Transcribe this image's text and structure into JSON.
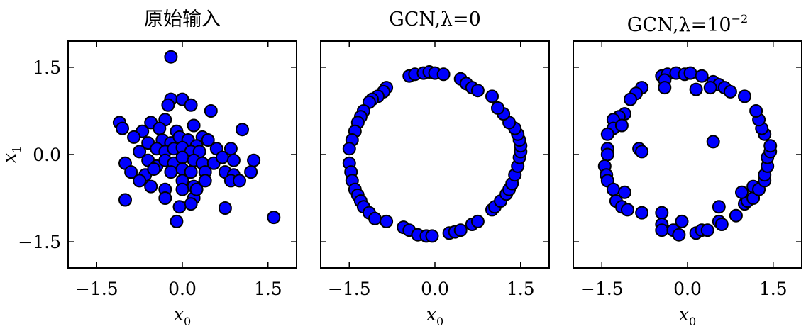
{
  "chart_data": [
    {
      "type": "scatter",
      "title": "原始输入",
      "xlabel": "x0",
      "ylabel": "x1",
      "xlim": [
        -2.0,
        2.0
      ],
      "ylim": [
        -1.95,
        1.95
      ],
      "xticks": [
        "−1.5",
        "0.0",
        "1.5"
      ],
      "yticks": [
        "1.5",
        "0.0",
        "−1.5"
      ],
      "marker_color": "#0000ff",
      "edge_color": "#000000",
      "points": [
        [
          -0.2,
          1.68
        ],
        [
          -0.2,
          0.95
        ],
        [
          0.0,
          0.95
        ],
        [
          -0.25,
          0.85
        ],
        [
          0.15,
          0.85
        ],
        [
          0.5,
          0.75
        ],
        [
          -1.1,
          0.55
        ],
        [
          -1.05,
          0.45
        ],
        [
          -0.55,
          0.55
        ],
        [
          -0.3,
          0.6
        ],
        [
          -0.7,
          0.4
        ],
        [
          -0.4,
          0.45
        ],
        [
          0.2,
          0.5
        ],
        [
          -0.1,
          0.4
        ],
        [
          0.35,
          0.3
        ],
        [
          1.05,
          0.43
        ],
        [
          -0.85,
          0.3
        ],
        [
          -0.6,
          0.2
        ],
        [
          -0.35,
          0.25
        ],
        [
          -0.2,
          0.2
        ],
        [
          -0.05,
          0.3
        ],
        [
          0.1,
          0.25
        ],
        [
          0.25,
          0.15
        ],
        [
          0.45,
          0.25
        ],
        [
          0.6,
          0.1
        ],
        [
          -0.45,
          0.1
        ],
        [
          -0.3,
          0.05
        ],
        [
          -0.15,
          0.1
        ],
        [
          0.0,
          0.12
        ],
        [
          0.15,
          0.05
        ],
        [
          0.3,
          0.05
        ],
        [
          0.85,
          0.1
        ],
        [
          -0.75,
          0.05
        ],
        [
          -1.0,
          -0.15
        ],
        [
          -0.6,
          -0.1
        ],
        [
          -0.45,
          -0.2
        ],
        [
          -0.3,
          -0.1
        ],
        [
          -0.15,
          -0.15
        ],
        [
          0.0,
          -0.05
        ],
        [
          0.2,
          -0.1
        ],
        [
          0.35,
          -0.15
        ],
        [
          0.55,
          -0.15
        ],
        [
          0.7,
          -0.05
        ],
        [
          0.9,
          -0.1
        ],
        [
          1.25,
          -0.1
        ],
        [
          -0.9,
          -0.3
        ],
        [
          -0.65,
          -0.35
        ],
        [
          -0.5,
          -0.25
        ],
        [
          -0.2,
          -0.3
        ],
        [
          0.0,
          -0.25
        ],
        [
          0.15,
          -0.3
        ],
        [
          0.4,
          -0.3
        ],
        [
          0.75,
          -0.3
        ],
        [
          0.9,
          -0.35
        ],
        [
          1.2,
          -0.3
        ],
        [
          -0.75,
          -0.45
        ],
        [
          -0.55,
          -0.55
        ],
        [
          0.0,
          -0.45
        ],
        [
          0.2,
          -0.55
        ],
        [
          0.4,
          -0.45
        ],
        [
          0.85,
          -0.45
        ],
        [
          1.0,
          -0.45
        ],
        [
          -0.3,
          -0.6
        ],
        [
          0.0,
          -0.6
        ],
        [
          0.2,
          -0.75
        ],
        [
          0.25,
          -0.6
        ],
        [
          -1.0,
          -0.78
        ],
        [
          -0.3,
          -0.75
        ],
        [
          0.15,
          -0.85
        ],
        [
          0.75,
          -0.92
        ],
        [
          -0.05,
          -0.9
        ],
        [
          -0.1,
          -1.15
        ],
        [
          1.6,
          -1.08
        ]
      ]
    },
    {
      "type": "scatter",
      "title": "GCN,λ=0",
      "xlabel": "x0",
      "xlim": [
        -2.0,
        2.0
      ],
      "ylim": [
        -1.95,
        1.95
      ],
      "xticks": [
        "−1.5",
        "0.0",
        "1.5"
      ],
      "marker_color": "#0000ff",
      "edge_color": "#000000",
      "points": [
        [
          -0.45,
          1.35
        ],
        [
          -0.35,
          1.38
        ],
        [
          -0.2,
          1.4
        ],
        [
          -0.1,
          1.42
        ],
        [
          0.0,
          1.4
        ],
        [
          0.15,
          1.38
        ],
        [
          0.45,
          1.3
        ],
        [
          0.55,
          1.22
        ],
        [
          0.65,
          1.15
        ],
        [
          0.75,
          1.1
        ],
        [
          -0.85,
          1.15
        ],
        [
          -0.9,
          1.08
        ],
        [
          -1.0,
          1.0
        ],
        [
          -1.1,
          0.95
        ],
        [
          -1.15,
          0.9
        ],
        [
          -1.25,
          0.75
        ],
        [
          -1.3,
          0.65
        ],
        [
          -1.35,
          0.55
        ],
        [
          -1.4,
          0.4
        ],
        [
          -1.45,
          0.25
        ],
        [
          -1.5,
          0.1
        ],
        [
          -1.5,
          -0.15
        ],
        [
          -1.47,
          -0.3
        ],
        [
          -1.45,
          -0.45
        ],
        [
          -1.4,
          -0.6
        ],
        [
          -1.35,
          -0.7
        ],
        [
          -1.3,
          -0.8
        ],
        [
          -1.25,
          -0.9
        ],
        [
          -1.15,
          -1.0
        ],
        [
          -1.05,
          -1.1
        ],
        [
          -0.85,
          -1.15
        ],
        [
          -0.55,
          -1.25
        ],
        [
          -0.45,
          -1.3
        ],
        [
          -0.3,
          -1.38
        ],
        [
          -0.15,
          -1.4
        ],
        [
          -0.05,
          -1.4
        ],
        [
          0.25,
          -1.35
        ],
        [
          0.35,
          -1.33
        ],
        [
          0.45,
          -1.3
        ],
        [
          0.65,
          -1.2
        ],
        [
          0.75,
          -1.15
        ],
        [
          1.0,
          -0.95
        ],
        [
          1.05,
          -0.9
        ],
        [
          1.15,
          -0.8
        ],
        [
          1.25,
          -0.68
        ],
        [
          1.3,
          -0.6
        ],
        [
          1.35,
          -0.5
        ],
        [
          1.4,
          -0.35
        ],
        [
          1.45,
          -0.2
        ],
        [
          1.48,
          -0.05
        ],
        [
          1.5,
          0.05
        ],
        [
          1.5,
          0.15
        ],
        [
          1.48,
          0.25
        ],
        [
          1.45,
          0.35
        ],
        [
          1.4,
          0.45
        ],
        [
          1.3,
          0.55
        ],
        [
          1.2,
          0.7
        ],
        [
          1.1,
          0.8
        ],
        [
          1.0,
          1.0
        ]
      ]
    },
    {
      "type": "scatter",
      "title": "GCN,λ=10",
      "title_exponent": "−2",
      "xlabel": "x0",
      "xlim": [
        -2.0,
        2.0
      ],
      "ylim": [
        -1.95,
        1.95
      ],
      "xticks": [
        "−1.5",
        "0.0",
        "1.5"
      ],
      "marker_color": "#0000ff",
      "edge_color": "#000000",
      "points": [
        [
          -0.45,
          1.35
        ],
        [
          -0.35,
          1.38
        ],
        [
          -0.4,
          1.28
        ],
        [
          -0.2,
          1.4
        ],
        [
          -0.05,
          1.38
        ],
        [
          0.05,
          1.4
        ],
        [
          0.25,
          1.35
        ],
        [
          -0.4,
          1.15
        ],
        [
          0.15,
          1.12
        ],
        [
          0.45,
          1.25
        ],
        [
          0.55,
          1.2
        ],
        [
          0.65,
          1.15
        ],
        [
          0.75,
          1.08
        ],
        [
          0.4,
          1.15
        ],
        [
          -0.8,
          1.15
        ],
        [
          -0.9,
          1.05
        ],
        [
          -1.0,
          0.95
        ],
        [
          -1.1,
          0.7
        ],
        [
          -1.2,
          0.65
        ],
        [
          -1.3,
          0.6
        ],
        [
          -1.3,
          0.45
        ],
        [
          -1.15,
          0.5
        ],
        [
          -1.4,
          0.35
        ],
        [
          -1.4,
          0.1
        ],
        [
          -1.4,
          0.0
        ],
        [
          -0.85,
          0.1
        ],
        [
          -0.8,
          0.05
        ],
        [
          0.45,
          0.22
        ],
        [
          -1.45,
          -0.2
        ],
        [
          -1.42,
          -0.35
        ],
        [
          -1.4,
          -0.45
        ],
        [
          -1.3,
          -0.6
        ],
        [
          -1.1,
          -0.65
        ],
        [
          -1.25,
          -0.8
        ],
        [
          -1.15,
          -0.9
        ],
        [
          -1.05,
          -0.95
        ],
        [
          -0.8,
          -1.0
        ],
        [
          -0.45,
          -1.0
        ],
        [
          -0.45,
          -1.2
        ],
        [
          -0.45,
          -1.3
        ],
        [
          -0.25,
          -1.3
        ],
        [
          -0.15,
          -1.38
        ],
        [
          -0.1,
          -1.15
        ],
        [
          0.15,
          -1.35
        ],
        [
          0.25,
          -1.3
        ],
        [
          0.35,
          -1.3
        ],
        [
          0.55,
          -1.15
        ],
        [
          0.6,
          -1.2
        ],
        [
          0.55,
          -0.9
        ],
        [
          0.85,
          -1.05
        ],
        [
          1.0,
          -0.85
        ],
        [
          1.05,
          -0.8
        ],
        [
          1.15,
          -0.75
        ],
        [
          1.15,
          -0.55
        ],
        [
          1.25,
          -0.6
        ],
        [
          0.95,
          -0.65
        ],
        [
          1.35,
          -0.45
        ],
        [
          1.35,
          -0.35
        ],
        [
          1.4,
          -0.2
        ],
        [
          1.4,
          -0.05
        ],
        [
          1.45,
          0.05
        ],
        [
          1.45,
          0.15
        ],
        [
          1.35,
          0.35
        ],
        [
          1.3,
          0.45
        ],
        [
          1.25,
          0.6
        ],
        [
          1.2,
          0.75
        ],
        [
          1.0,
          1.0
        ]
      ]
    }
  ]
}
